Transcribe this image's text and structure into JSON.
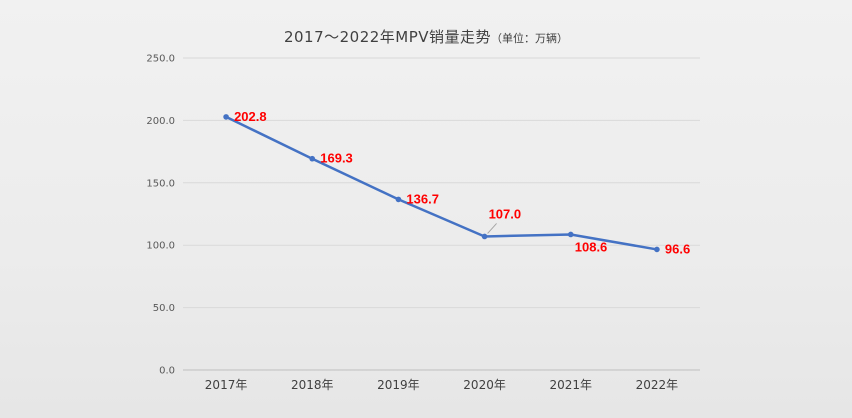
{
  "chart_data": {
    "type": "line",
    "title": "2017～2022年MPV销量走势",
    "subtitle": "（单位：万辆）",
    "xlabel": "",
    "ylabel": "",
    "categories": [
      "2017年",
      "2018年",
      "2019年",
      "2020年",
      "2021年",
      "2022年"
    ],
    "series": [
      {
        "values": [
          202.8,
          169.3,
          136.7,
          107.0,
          108.6,
          96.6
        ],
        "data_labels": [
          "202.8",
          "169.3",
          "136.7",
          "107.0",
          "108.6",
          "96.6"
        ]
      }
    ],
    "ylim": [
      0,
      250
    ],
    "yticks": [
      0,
      50,
      100,
      150,
      200,
      250
    ],
    "ytick_labels": [
      "0.0",
      "50.0",
      "100.0",
      "150.0",
      "200.0",
      "250.0"
    ],
    "grid": true,
    "legend": "none",
    "colors": {
      "line": "#4472c4",
      "marker": "#4472c4",
      "data_label": "#ff0000",
      "gridline": "#d9d9d9",
      "axis": "#bfbfbf"
    }
  }
}
